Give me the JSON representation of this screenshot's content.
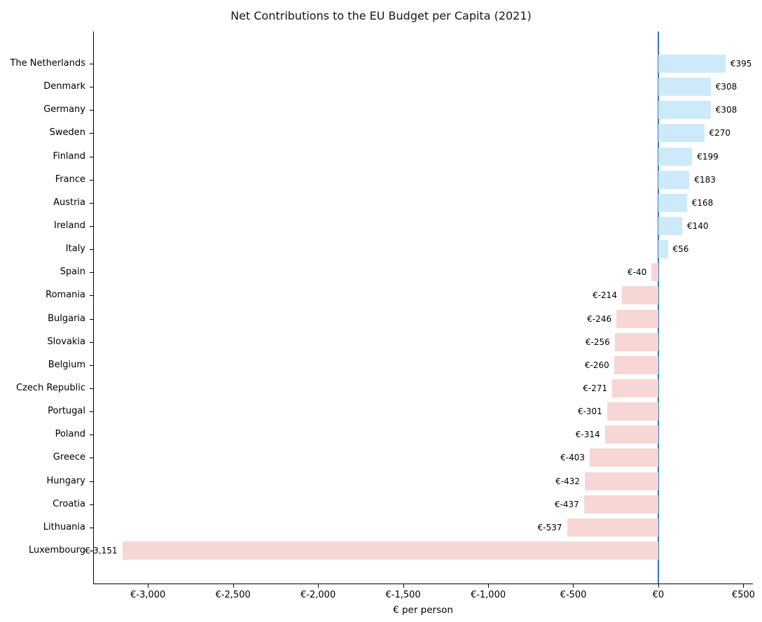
{
  "chart_data": {
    "type": "bar",
    "orientation": "horizontal",
    "title": "Net Contributions to the EU Budget per Capita (2021)",
    "xlabel": "€ per person",
    "ylabel": "",
    "grid": false,
    "legend": null,
    "categories": [
      "The Netherlands",
      "Denmark",
      "Germany",
      "Sweden",
      "Finland",
      "France",
      "Austria",
      "Ireland",
      "Italy",
      "Spain",
      "Romania",
      "Bulgaria",
      "Slovakia",
      "Belgium",
      "Czech Republic",
      "Portugal",
      "Poland",
      "Greece",
      "Hungary",
      "Croatia",
      "Lithuania",
      "Luxembourg"
    ],
    "values": [
      395,
      308,
      308,
      270,
      199,
      183,
      168,
      140,
      56,
      -40,
      -214,
      -246,
      -256,
      -260,
      -271,
      -301,
      -314,
      -403,
      -432,
      -437,
      -537,
      -3151
    ],
    "value_labels": [
      "€395",
      "€308",
      "€308",
      "€270",
      "€199",
      "€183",
      "€168",
      "€140",
      "€56",
      "€-40",
      "€-214",
      "€-246",
      "€-256",
      "€-260",
      "€-271",
      "€-301",
      "€-314",
      "€-403",
      "€-432",
      "€-437",
      "€-537",
      "€-3,151"
    ],
    "xlim": [
      -3322,
      556
    ],
    "x_ticks": [
      -3000,
      -2500,
      -2000,
      -1500,
      -1000,
      -500,
      0,
      500
    ],
    "x_tick_labels": [
      "€-3,000",
      "€-2,500",
      "€-2,000",
      "€-1,500",
      "€-1,000",
      "€-500",
      "€0",
      "€500"
    ],
    "colors": {
      "positive_bar": "#cdeafb",
      "negative_bar": "#f7d6d6",
      "zero_line": "#3579b8",
      "axis": "#000000",
      "text": "#000000"
    }
  }
}
